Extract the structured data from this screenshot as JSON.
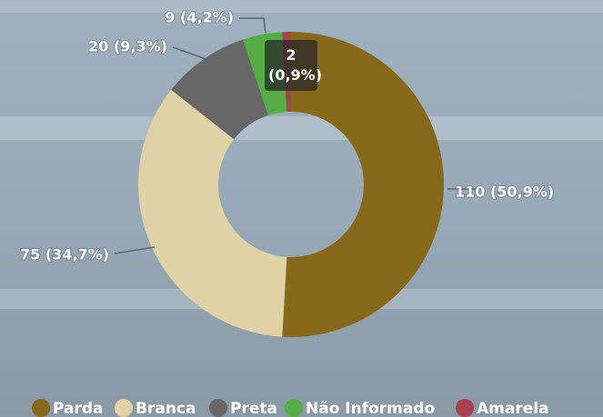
{
  "chart_data": {
    "type": "donut",
    "categories": [
      "Parda",
      "Branca",
      "Preta",
      "Não Informado",
      "Amarela"
    ],
    "values": [
      110,
      75,
      20,
      9,
      2
    ],
    "value_labels": [
      "110 (50,9%)",
      "75 (34,7%)",
      "20 (9,3%)",
      "9 (4,2%)",
      "2 (0,9%)"
    ],
    "colors": [
      "#86691a",
      "#dfd2a5",
      "#676767",
      "#55ad45",
      "#a7434f"
    ],
    "legend": "bottom"
  }
}
